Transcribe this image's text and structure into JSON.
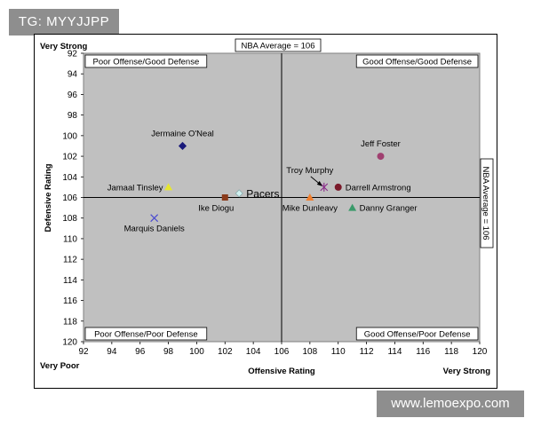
{
  "watermarks": {
    "top_left": "TG: MYYJJPP",
    "bottom_right": "www.lemoexpo.com"
  },
  "colors": {
    "plot_bg": "#c0c0c0",
    "page_bg": "#ffffff"
  },
  "chart_data": {
    "type": "scatter",
    "xlabel": "Offensive Rating",
    "ylabel": "Defensive Rating",
    "xlim": [
      92,
      120
    ],
    "ylim": [
      92,
      120
    ],
    "y_inverted": true,
    "x_ticks": [
      92,
      94,
      96,
      98,
      100,
      102,
      104,
      106,
      108,
      110,
      112,
      114,
      116,
      118,
      120
    ],
    "y_ticks": [
      92,
      94,
      96,
      98,
      100,
      102,
      104,
      106,
      108,
      110,
      112,
      114,
      116,
      118,
      120
    ],
    "average_x": 106,
    "average_y": 106,
    "average_label_top": "NBA Average = 106",
    "average_label_right": "NBA Average = 106",
    "corner_labels": {
      "very_strong": "Very Strong",
      "very_poor": "Very Poor",
      "very_strong_right": "Very Strong"
    },
    "quadrants": {
      "top_left": "Poor Offense/Good Defense",
      "top_right": "Good Offense/Good Defense",
      "bottom_left": "Poor Offense/Poor Defense",
      "bottom_right": "Good Offense/Poor Defense"
    },
    "points": [
      {
        "name": "Jermaine O'Neal",
        "x": 99.0,
        "y": 101.0,
        "marker": "diamond",
        "color": "#1a1a7a",
        "label_pos": "above"
      },
      {
        "name": "Jeff Foster",
        "x": 113.0,
        "y": 102.0,
        "marker": "circle",
        "color": "#a04070",
        "label_pos": "above"
      },
      {
        "name": "Jamaal Tinsley",
        "x": 98.0,
        "y": 105.0,
        "marker": "triangle",
        "color": "#e6e62e",
        "label_pos": "left"
      },
      {
        "name": "Troy Murphy",
        "x": 109.0,
        "y": 105.0,
        "marker": "star",
        "color": "#8a2a8a",
        "label_pos": "above-arrow"
      },
      {
        "name": "Darrell Armstrong",
        "x": 110.0,
        "y": 105.0,
        "marker": "circle",
        "color": "#7a1a2a",
        "label_pos": "right"
      },
      {
        "name": "Ike Diogu",
        "x": 102.0,
        "y": 106.0,
        "marker": "square",
        "color": "#8a3a1a",
        "label_pos": "below-left"
      },
      {
        "name": "Pacers",
        "x": 103.0,
        "y": 105.6,
        "marker": "diamond",
        "color": "#d0f0f0",
        "label_pos": "right-large"
      },
      {
        "name": "Mike Dunleavy",
        "x": 108.0,
        "y": 106.0,
        "marker": "triangle",
        "color": "#f08030",
        "label_pos": "below"
      },
      {
        "name": "Danny Granger",
        "x": 111.0,
        "y": 107.0,
        "marker": "triangle",
        "color": "#3a9a6a",
        "label_pos": "right"
      },
      {
        "name": "Marquis Daniels",
        "x": 97.0,
        "y": 108.0,
        "marker": "x",
        "color": "#4a4ad0",
        "label_pos": "below"
      }
    ]
  }
}
